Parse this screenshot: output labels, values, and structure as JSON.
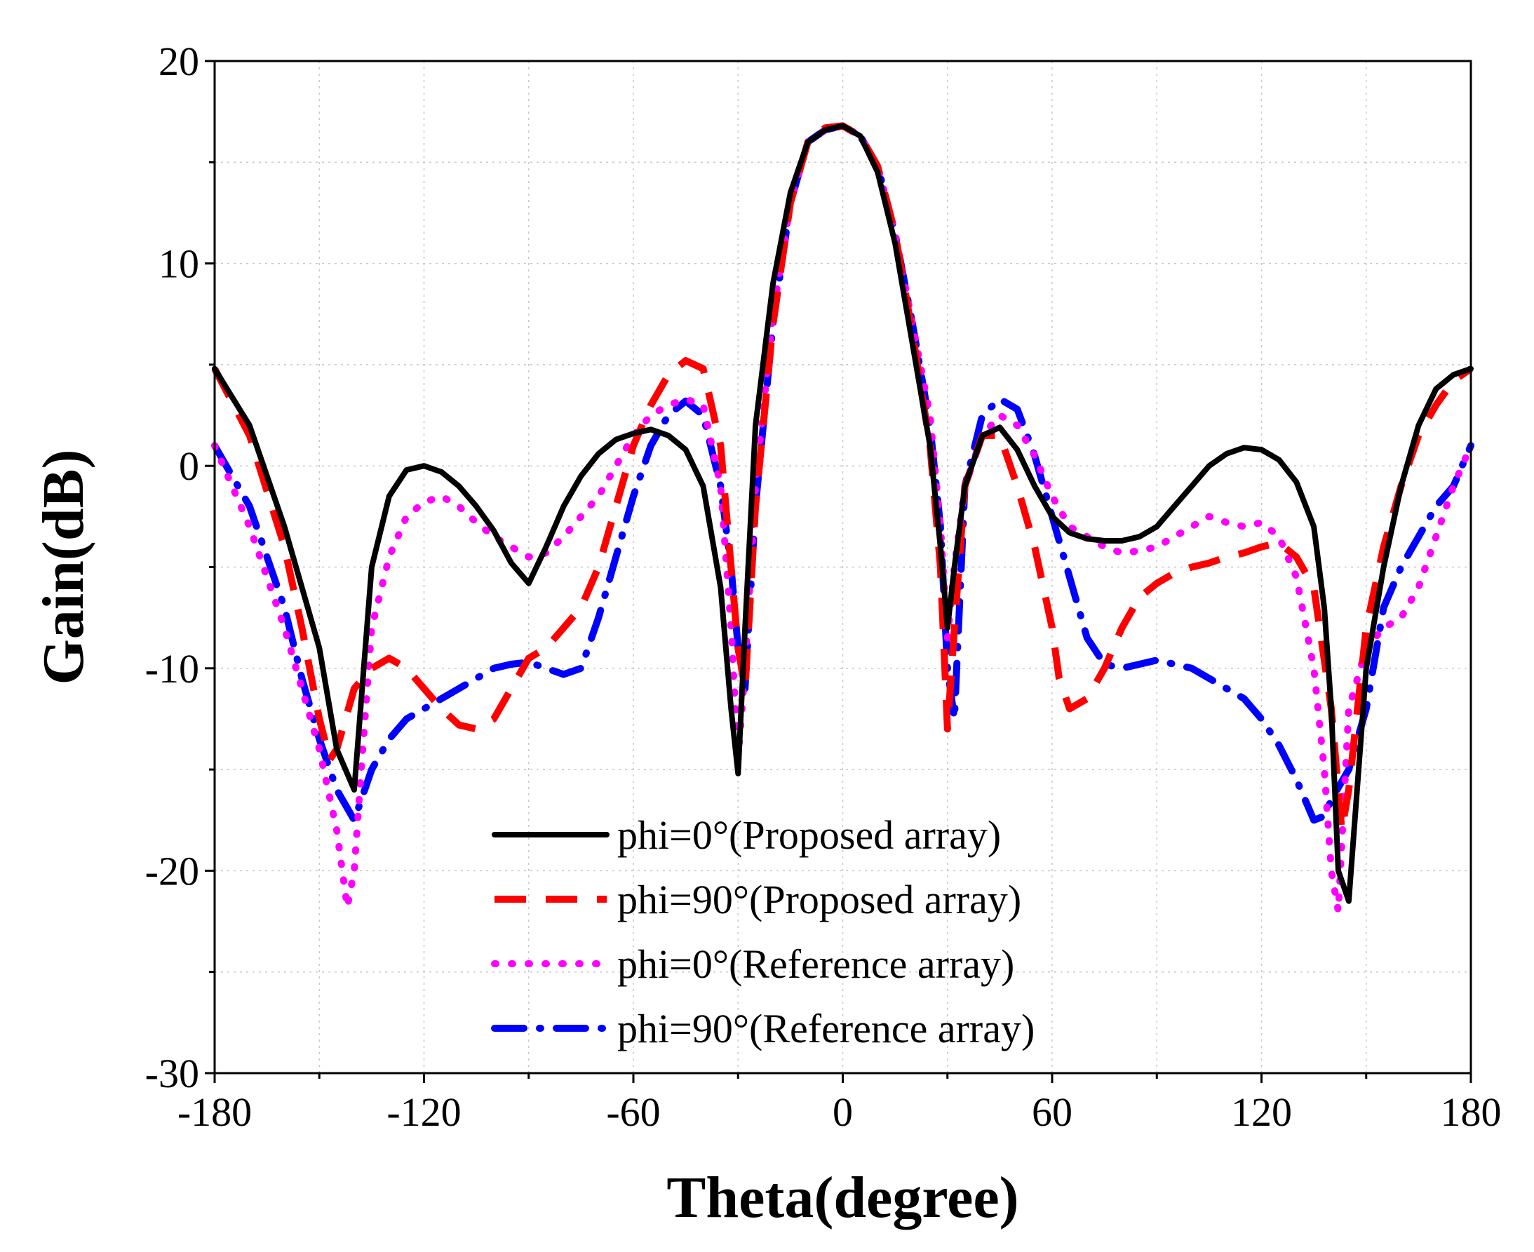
{
  "chart_data": {
    "type": "line",
    "title": "",
    "xlabel": "Theta(degree)",
    "ylabel": "Gain(dB)",
    "xlim": [
      -180,
      180
    ],
    "ylim": [
      -30,
      20
    ],
    "xticks": [
      -180,
      -120,
      -60,
      0,
      60,
      120,
      180
    ],
    "yticks": [
      -30,
      -20,
      -10,
      0,
      10,
      20
    ],
    "xtick_labels": [
      "-180",
      "-120",
      "-60",
      "0",
      "60",
      "120",
      "180"
    ],
    "ytick_labels": [
      "-30",
      "-20",
      "-10",
      "0",
      "10",
      "20"
    ],
    "grid": true,
    "legend_position": "bottom-center",
    "series": [
      {
        "name": "phi=0°(Proposed array)",
        "color": "#000000",
        "style": "solid",
        "x": [
          -180,
          -170,
          -160,
          -150,
          -145,
          -140,
          -135,
          -130,
          -125,
          -120,
          -115,
          -110,
          -105,
          -100,
          -95,
          -90,
          -85,
          -80,
          -75,
          -70,
          -65,
          -60,
          -55,
          -50,
          -45,
          -40,
          -35,
          -32,
          -30,
          -28,
          -25,
          -20,
          -15,
          -10,
          -5,
          0,
          5,
          10,
          15,
          20,
          25,
          28,
          30,
          32,
          35,
          40,
          45,
          50,
          55,
          60,
          65,
          70,
          75,
          80,
          85,
          90,
          95,
          100,
          105,
          110,
          115,
          120,
          125,
          130,
          135,
          138,
          140,
          142,
          145,
          150,
          155,
          160,
          165,
          170,
          175,
          180
        ],
        "y": [
          4.8,
          2.0,
          -3.0,
          -9.0,
          -14.0,
          -16.0,
          -5.0,
          -1.5,
          -0.2,
          0.0,
          -0.3,
          -1.0,
          -2.0,
          -3.2,
          -4.8,
          -5.8,
          -4.0,
          -2.0,
          -0.5,
          0.6,
          1.3,
          1.6,
          1.8,
          1.5,
          0.8,
          -1.0,
          -6.0,
          -12.0,
          -15.2,
          -8.0,
          2.0,
          9.0,
          13.5,
          16.0,
          16.6,
          16.8,
          16.3,
          14.5,
          11.0,
          6.0,
          1.0,
          -4.0,
          -8.0,
          -5.0,
          -1.0,
          1.5,
          1.9,
          0.8,
          -1.0,
          -2.5,
          -3.3,
          -3.6,
          -3.7,
          -3.7,
          -3.5,
          -3.0,
          -2.0,
          -1.0,
          0.0,
          0.6,
          0.9,
          0.8,
          0.3,
          -0.8,
          -3.0,
          -7.0,
          -12.0,
          -20.0,
          -21.5,
          -10.0,
          -5.0,
          -1.0,
          2.0,
          3.8,
          4.5,
          4.8
        ]
      },
      {
        "name": "phi=90°(Proposed array)",
        "color": "#ff0000",
        "style": "dashed",
        "x": [
          -180,
          -170,
          -160,
          -155,
          -150,
          -147,
          -145,
          -140,
          -135,
          -130,
          -125,
          -120,
          -115,
          -110,
          -105,
          -100,
          -95,
          -90,
          -85,
          -80,
          -75,
          -70,
          -65,
          -60,
          -55,
          -50,
          -45,
          -40,
          -35,
          -32,
          -30,
          -28,
          -25,
          -20,
          -15,
          -10,
          -5,
          0,
          5,
          10,
          15,
          20,
          25,
          28,
          30,
          32,
          35,
          40,
          45,
          50,
          55,
          60,
          62,
          65,
          70,
          75,
          80,
          85,
          90,
          95,
          100,
          105,
          110,
          115,
          120,
          125,
          130,
          135,
          140,
          143,
          145,
          150,
          155,
          160,
          165,
          170,
          175,
          180
        ],
        "y": [
          4.8,
          1.5,
          -4.0,
          -8.0,
          -12.5,
          -14.5,
          -14.0,
          -11.0,
          -10.0,
          -9.5,
          -10.0,
          -11.0,
          -12.0,
          -12.8,
          -13.0,
          -12.5,
          -11.0,
          -9.5,
          -9.0,
          -8.0,
          -7.0,
          -5.0,
          -2.0,
          1.0,
          3.0,
          4.5,
          5.2,
          4.8,
          1.0,
          -5.0,
          -9.0,
          -11.0,
          -2.0,
          7.0,
          13.0,
          16.0,
          16.7,
          16.8,
          16.3,
          14.8,
          11.5,
          6.5,
          1.0,
          -5.0,
          -13.0,
          -8.0,
          -1.0,
          1.5,
          1.5,
          -1.0,
          -4.0,
          -8.0,
          -10.5,
          -12.0,
          -11.5,
          -10.0,
          -8.0,
          -6.5,
          -5.8,
          -5.3,
          -5.0,
          -4.8,
          -4.5,
          -4.3,
          -4.0,
          -3.8,
          -4.5,
          -6.0,
          -12.0,
          -18.0,
          -16.0,
          -8.0,
          -4.0,
          -1.0,
          1.5,
          3.0,
          4.2,
          4.8
        ]
      },
      {
        "name": "phi=0°(Reference array)",
        "color": "#ff00ff",
        "style": "dotted",
        "x": [
          -180,
          -175,
          -170,
          -165,
          -160,
          -155,
          -150,
          -145,
          -142,
          -140,
          -138,
          -135,
          -130,
          -125,
          -120,
          -115,
          -110,
          -105,
          -100,
          -95,
          -90,
          -85,
          -80,
          -75,
          -70,
          -65,
          -60,
          -55,
          -50,
          -45,
          -40,
          -35,
          -32,
          -30,
          -28,
          -25,
          -20,
          -15,
          -10,
          -5,
          0,
          5,
          10,
          15,
          20,
          25,
          28,
          30,
          32,
          35,
          40,
          45,
          50,
          55,
          60,
          65,
          70,
          75,
          80,
          85,
          90,
          95,
          100,
          105,
          110,
          115,
          120,
          125,
          130,
          135,
          138,
          140,
          142,
          145,
          150,
          155,
          160,
          165,
          170,
          175,
          180
        ],
        "y": [
          1.0,
          -1.0,
          -3.0,
          -5.5,
          -8.0,
          -11.0,
          -14.0,
          -18.0,
          -21.8,
          -20.0,
          -15.0,
          -8.0,
          -4.5,
          -2.5,
          -1.8,
          -1.5,
          -2.0,
          -2.8,
          -3.5,
          -4.0,
          -4.5,
          -4.3,
          -3.5,
          -2.5,
          -1.5,
          0.0,
          1.5,
          2.5,
          3.0,
          3.3,
          3.0,
          -1.0,
          -8.0,
          -14.5,
          -10.0,
          -1.0,
          7.5,
          13.0,
          16.0,
          16.6,
          16.8,
          16.3,
          14.8,
          11.5,
          7.0,
          2.5,
          -3.0,
          -8.5,
          -5.0,
          -1.0,
          1.5,
          2.5,
          2.0,
          0.5,
          -1.5,
          -3.0,
          -3.5,
          -4.0,
          -4.3,
          -4.2,
          -4.0,
          -3.5,
          -3.0,
          -2.5,
          -2.8,
          -3.0,
          -2.8,
          -3.5,
          -5.5,
          -10.0,
          -15.0,
          -20.0,
          -22.0,
          -12.0,
          -9.0,
          -8.0,
          -7.5,
          -6.0,
          -3.5,
          -1.0,
          1.0
        ]
      },
      {
        "name": "phi=90°(Reference array)",
        "color": "#0000ff",
        "style": "dashdot",
        "x": [
          -180,
          -170,
          -160,
          -155,
          -150,
          -145,
          -140,
          -135,
          -130,
          -125,
          -120,
          -115,
          -110,
          -105,
          -100,
          -95,
          -90,
          -85,
          -80,
          -75,
          -70,
          -65,
          -60,
          -55,
          -50,
          -45,
          -40,
          -35,
          -32,
          -30,
          -28,
          -25,
          -20,
          -15,
          -10,
          -5,
          0,
          5,
          10,
          15,
          20,
          25,
          28,
          30,
          32,
          35,
          40,
          45,
          50,
          55,
          60,
          65,
          70,
          75,
          80,
          85,
          90,
          95,
          100,
          105,
          110,
          115,
          120,
          125,
          130,
          135,
          138,
          140,
          145,
          150,
          155,
          160,
          165,
          170,
          175,
          180
        ],
        "y": [
          1.0,
          -2.0,
          -7.0,
          -10.5,
          -13.5,
          -16.0,
          -17.5,
          -15.0,
          -13.5,
          -12.5,
          -12.0,
          -11.5,
          -11.0,
          -10.5,
          -10.0,
          -9.8,
          -9.7,
          -10.0,
          -10.3,
          -10.0,
          -7.5,
          -4.5,
          -1.5,
          1.0,
          2.5,
          3.2,
          2.5,
          -1.0,
          -5.0,
          -9.0,
          -11.0,
          -2.0,
          7.0,
          13.0,
          16.0,
          16.6,
          16.8,
          16.3,
          14.8,
          11.5,
          7.0,
          2.0,
          -3.0,
          -10.0,
          -12.5,
          -1.0,
          2.5,
          3.3,
          2.8,
          0.5,
          -2.5,
          -5.5,
          -8.5,
          -9.8,
          -10.0,
          -9.8,
          -9.6,
          -9.8,
          -10.0,
          -10.5,
          -11.0,
          -11.5,
          -12.5,
          -13.8,
          -15.5,
          -17.5,
          -17.3,
          -16.5,
          -15.0,
          -12.0,
          -7.0,
          -5.0,
          -3.5,
          -2.0,
          -1.0,
          1.0
        ]
      }
    ]
  }
}
